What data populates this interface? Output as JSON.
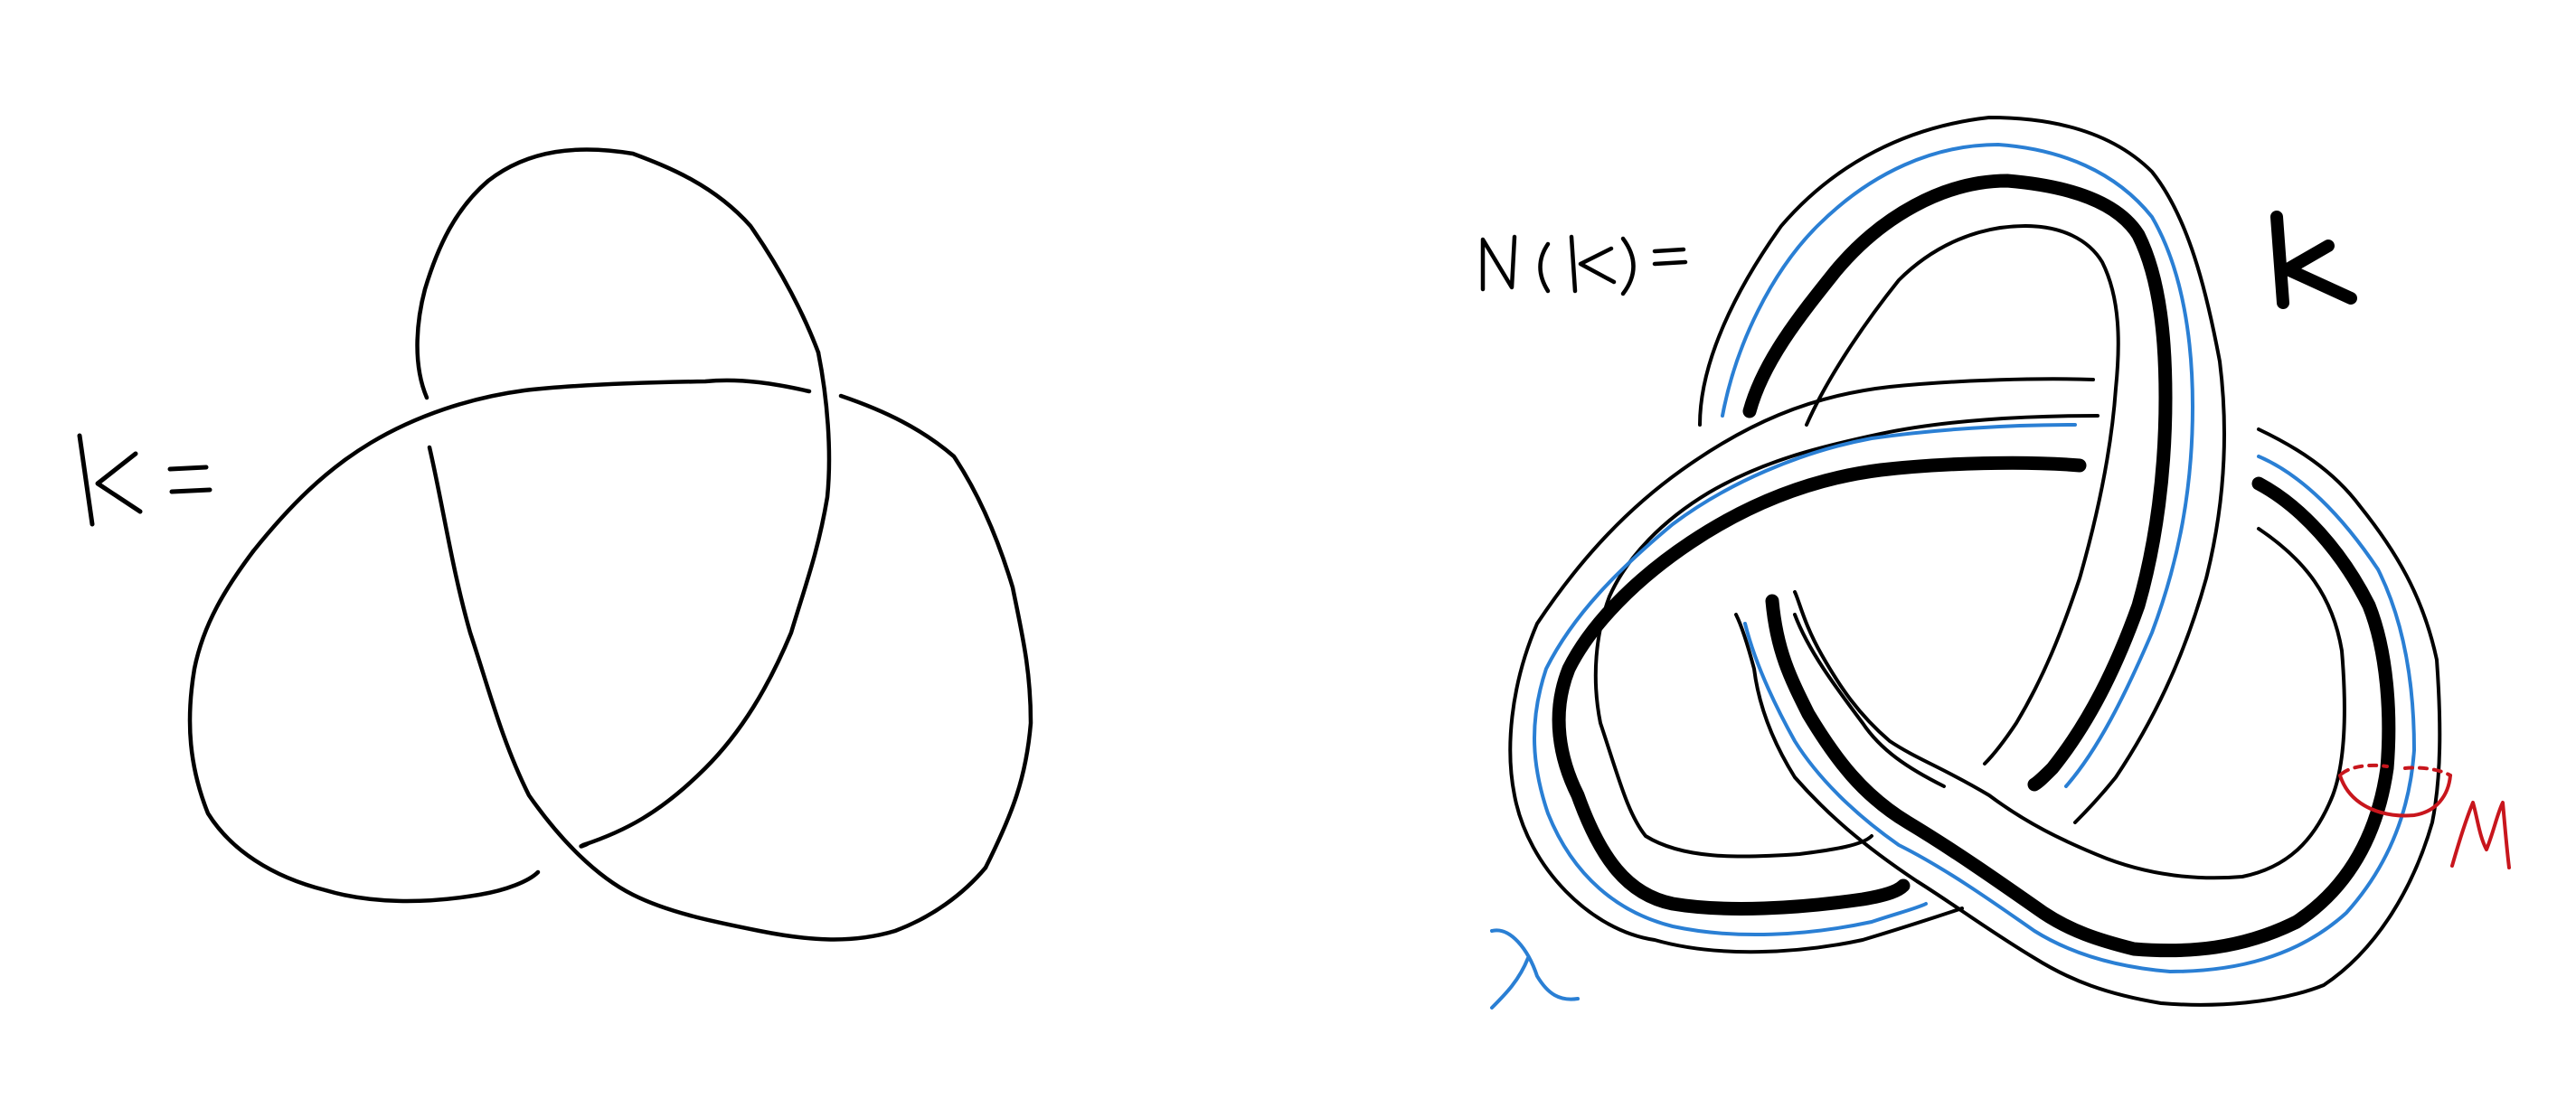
{
  "left_panel": {
    "label": "K ="
  },
  "right_panel": {
    "label": "N(K) =",
    "core_label": "K",
    "longitude_label": "λ",
    "meridian_label": "μ"
  },
  "colors": {
    "ink": "#000000",
    "longitude": "#2a7fd4",
    "meridian": "#c8161d"
  }
}
